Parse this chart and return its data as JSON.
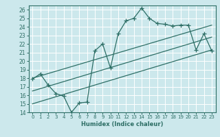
{
  "title": "",
  "xlabel": "Humidex (Indice chaleur)",
  "ylabel": "",
  "bg_color": "#cce8ec",
  "grid_color": "#ffffff",
  "line_color": "#2d6e65",
  "xlim": [
    -0.5,
    23.5
  ],
  "ylim": [
    14,
    26.5
  ],
  "xticks": [
    0,
    1,
    2,
    3,
    4,
    5,
    6,
    7,
    8,
    9,
    10,
    11,
    12,
    13,
    14,
    15,
    16,
    17,
    18,
    19,
    20,
    21,
    22,
    23
  ],
  "yticks": [
    14,
    15,
    16,
    17,
    18,
    19,
    20,
    21,
    22,
    23,
    24,
    25,
    26
  ],
  "main_series": [
    17.9,
    18.5,
    17.2,
    16.2,
    15.9,
    14.0,
    15.1,
    15.2,
    21.2,
    22.0,
    19.2,
    23.2,
    24.7,
    25.0,
    26.2,
    25.0,
    24.4,
    24.3,
    24.1,
    24.2,
    24.2,
    21.3,
    23.2,
    21.2
  ],
  "trend_lines": [
    [
      18.0,
      24.2
    ],
    [
      16.5,
      22.8
    ],
    [
      15.0,
      21.3
    ]
  ]
}
